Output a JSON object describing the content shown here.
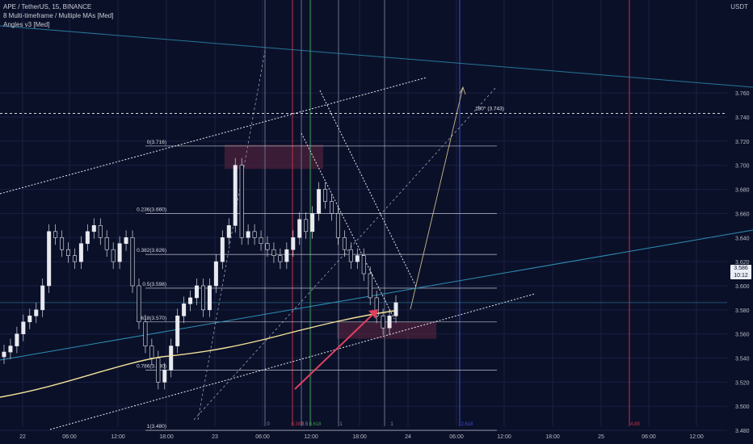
{
  "legend": {
    "symbol": "APE / TetherUS, 15, BINANCE",
    "indicator1": "8 Multi-timeframe / Multiple MAs [Med]",
    "indicator2": "Angles v3 [Med]"
  },
  "price_axis": {
    "unit": "USDT",
    "current_price": "3.586",
    "countdown": "10:12"
  },
  "chart_data": {
    "type": "candlestick",
    "symbol": "APE / TetherUS",
    "timeframe": "15",
    "exchange": "BINANCE",
    "y_ticks": [
      "3.760",
      "3.740",
      "3.720",
      "3.700",
      "3.680",
      "3.660",
      "3.640",
      "3.620",
      "3.600",
      "3.580",
      "3.560",
      "3.540",
      "3.520",
      "3.500",
      "3.480"
    ],
    "ylim": [
      3.476,
      3.768
    ],
    "x_ticks": [
      "22",
      "06:00",
      "12:00",
      "18:00",
      "23",
      "06:00",
      "12:00",
      "18:00",
      "24",
      "06:00",
      "12:00",
      "18:00",
      "25",
      "06:00",
      "12:00"
    ],
    "fib_levels": [
      {
        "label": "0(3.716)",
        "value": 3.716
      },
      {
        "label": "0.236(3.660)",
        "value": 3.66
      },
      {
        "label": "0.382(3.626)",
        "value": 3.626
      },
      {
        "label": "0.5(3.598)",
        "value": 3.598
      },
      {
        "label": "0.618(3.570)",
        "value": 3.57
      },
      {
        "label": "0.786(3.530)",
        "value": 3.53
      },
      {
        "label": "1(3.480)",
        "value": 3.48
      }
    ],
    "horizontal_level": {
      "label": "180° (3.743)",
      "value": 3.743
    },
    "time_markers": [
      "0",
      "0.382",
      "0.5",
      "0.618",
      "1",
      "1",
      "2.618",
      "4.88"
    ],
    "last_price": 3.586,
    "close_series": [
      3.545,
      3.55,
      3.56,
      3.57,
      3.575,
      3.58,
      3.6,
      3.645,
      3.64,
      3.63,
      3.625,
      3.62,
      3.635,
      3.645,
      3.65,
      3.64,
      3.63,
      3.62,
      3.635,
      3.64,
      3.6,
      3.57,
      3.55,
      3.54,
      3.52,
      3.53,
      3.55,
      3.575,
      3.585,
      3.59,
      3.6,
      3.58,
      3.6,
      3.62,
      3.64,
      3.65,
      3.7,
      3.64,
      3.645,
      3.64,
      3.635,
      3.63,
      3.625,
      3.62,
      3.63,
      3.64,
      3.655,
      3.645,
      3.66,
      3.68,
      3.67,
      3.66,
      3.64,
      3.63,
      3.62,
      3.625,
      3.61,
      3.59,
      3.575,
      3.565,
      3.575,
      3.586
    ]
  },
  "colors": {
    "background": "#0b1029",
    "grid": "#182042",
    "fib_line": "#c9cdd6",
    "ma_line": "#f2e29a",
    "channel_line": "#2d8fb3",
    "arrow": "#e0405f",
    "time_line_gray": "#6a6f8a",
    "time_line_red": "#c0304a",
    "time_line_green": "#3c9a4f",
    "time_line_blue": "#3a4fd0"
  }
}
